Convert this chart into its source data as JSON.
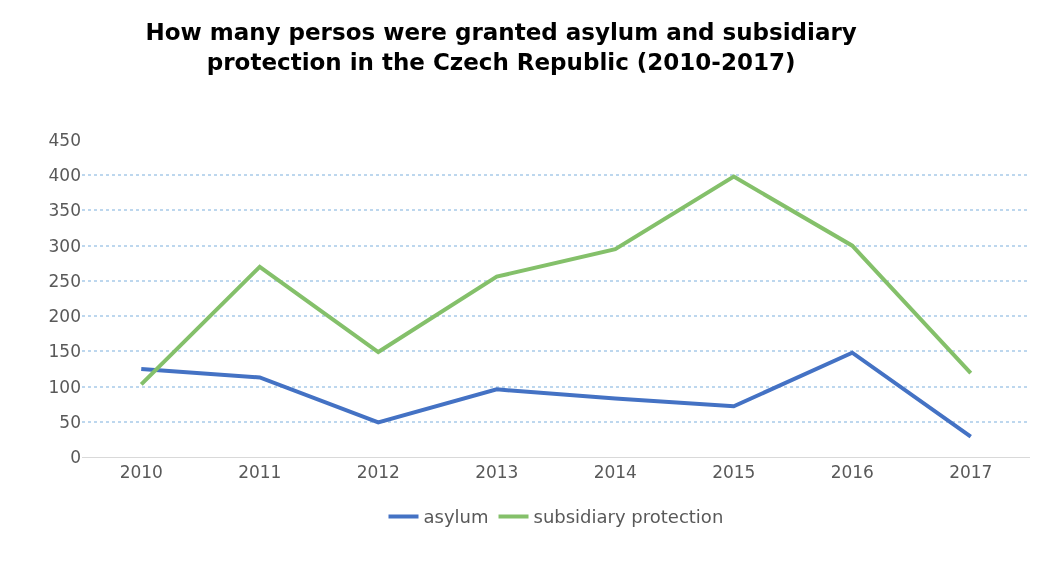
{
  "chart_data": {
    "type": "line",
    "title": "How many persos were granted asylum and subsidiary protection in the Czech Republic (2010-2017)",
    "categories": [
      "2010",
      "2011",
      "2012",
      "2013",
      "2014",
      "2015",
      "2016",
      "2017"
    ],
    "series": [
      {
        "name": "asylum",
        "color": "#4472c4",
        "values": [
          125,
          113,
          49,
          96,
          83,
          72,
          148,
          29
        ]
      },
      {
        "name": "subsidiary protection",
        "color": "#84c06a",
        "values": [
          103,
          270,
          149,
          256,
          295,
          398,
          300,
          119
        ]
      }
    ],
    "ylim": [
      0,
      450
    ],
    "yticks": [
      0,
      50,
      100,
      150,
      200,
      250,
      300,
      350,
      400,
      450
    ],
    "grid": "y",
    "legend": "bottom",
    "marker": "none",
    "line_style": "solid"
  }
}
